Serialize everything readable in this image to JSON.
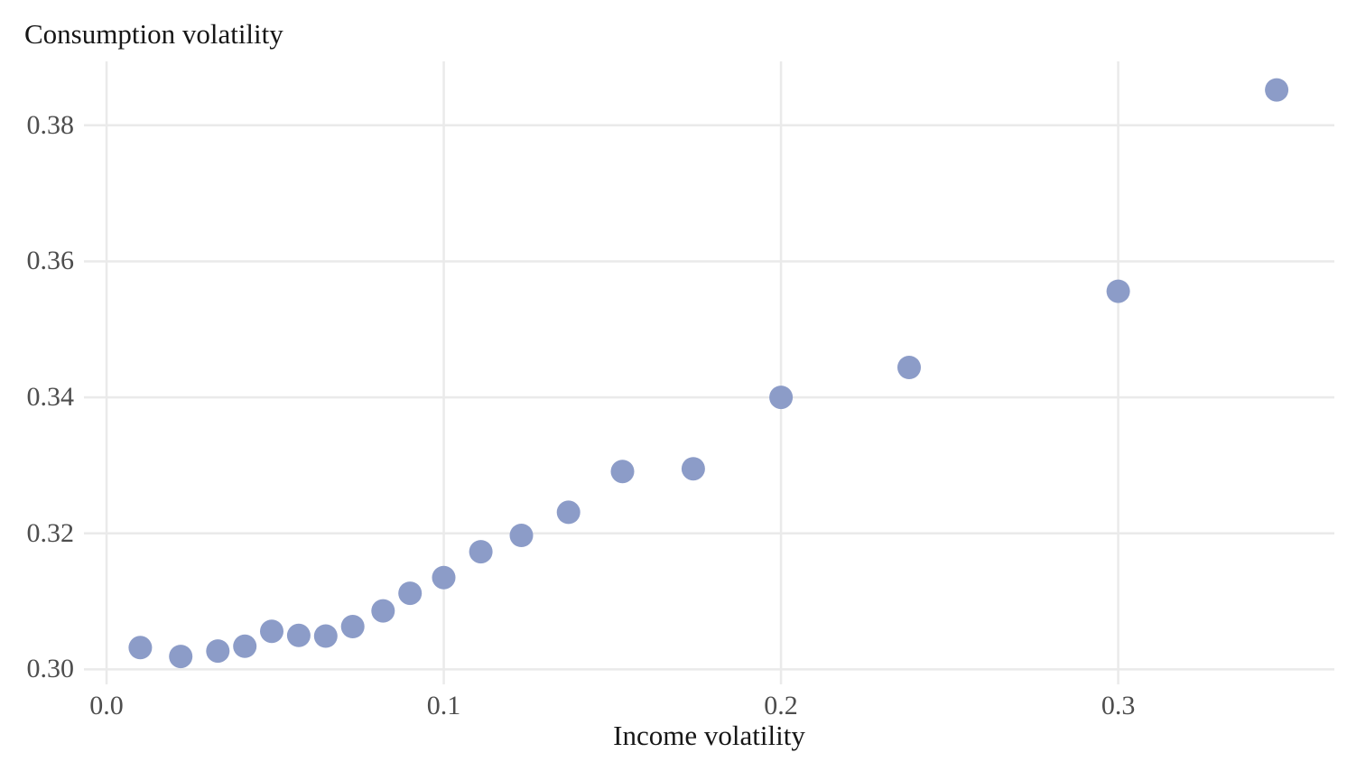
{
  "chart_data": {
    "type": "scatter",
    "title": "",
    "ylabel": "Consumption volatility",
    "xlabel": "Income volatility",
    "x": [
      0.01,
      0.022,
      0.033,
      0.041,
      0.049,
      0.057,
      0.065,
      0.073,
      0.082,
      0.09,
      0.1,
      0.111,
      0.123,
      0.137,
      0.153,
      0.174,
      0.2,
      0.238,
      0.3,
      0.347
    ],
    "y": [
      0.3032,
      0.3019,
      0.3027,
      0.3034,
      0.3056,
      0.305,
      0.3049,
      0.3063,
      0.3086,
      0.3112,
      0.3135,
      0.3173,
      0.3197,
      0.3231,
      0.3291,
      0.3295,
      0.34,
      0.3444,
      0.3556,
      0.3852
    ],
    "x_ticks": {
      "values": [
        0.0,
        0.1,
        0.2,
        0.3
      ],
      "labels": [
        "0.0",
        "0.1",
        "0.2",
        "0.3"
      ]
    },
    "y_ticks": {
      "values": [
        0.3,
        0.32,
        0.34,
        0.36,
        0.38
      ],
      "labels": [
        "0.30",
        "0.32",
        "0.34",
        "0.36",
        "0.38"
      ]
    },
    "xlim": [
      -0.0067,
      0.3641
    ],
    "ylim": [
      0.2978,
      0.3894
    ],
    "grid": true,
    "legend": false,
    "point_color": "#8c9cc8",
    "point_radius_px": 13,
    "gridline_color": "#eaeaea",
    "axis_text_color": "#4d4d4d",
    "axis_title_color": "#161616",
    "background_color": "#ffffff"
  }
}
